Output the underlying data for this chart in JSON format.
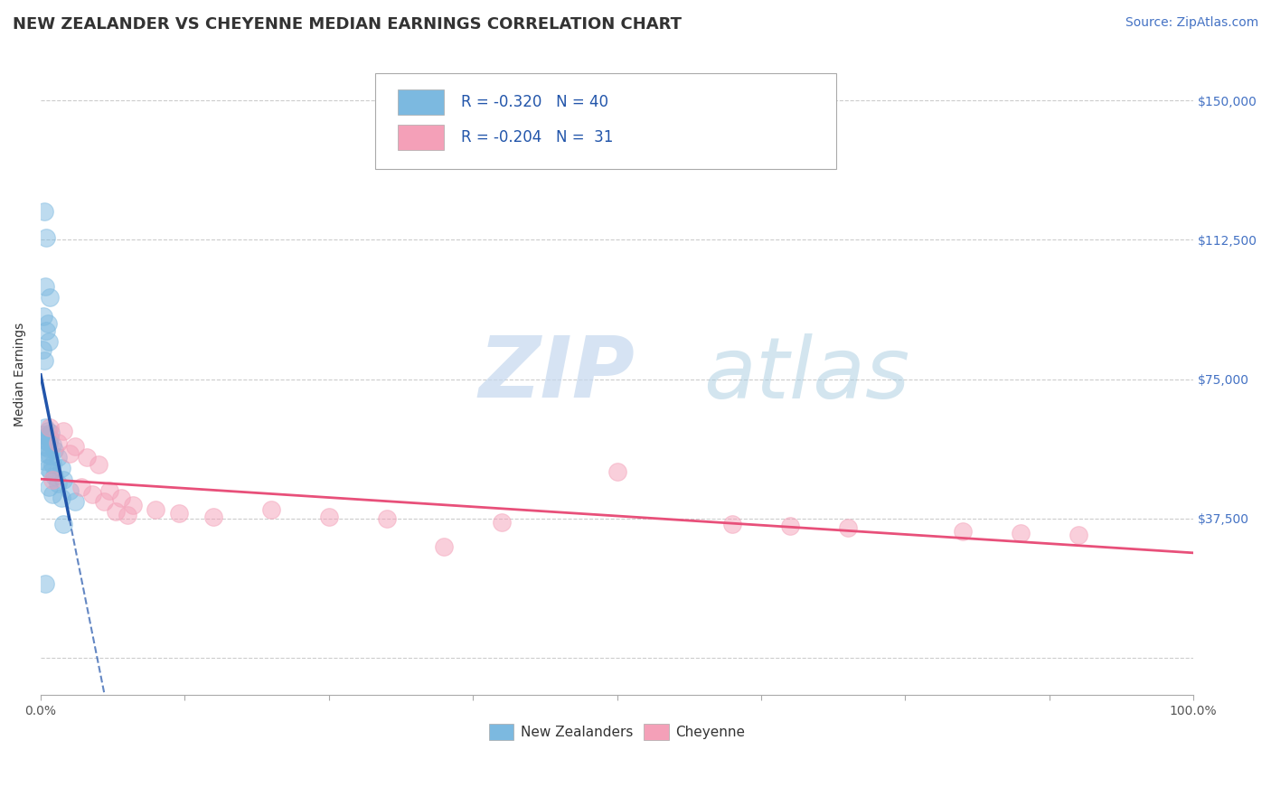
{
  "title": "NEW ZEALANDER VS CHEYENNE MEDIAN EARNINGS CORRELATION CHART",
  "source": "Source: ZipAtlas.com",
  "ylabel": "Median Earnings",
  "xlim": [
    0.0,
    100.0
  ],
  "ylim": [
    -10000,
    162500
  ],
  "yticks": [
    0,
    37500,
    75000,
    112500,
    150000
  ],
  "ytick_labels": [
    "",
    "$37,500",
    "$75,000",
    "$112,500",
    "$150,000"
  ],
  "xtick_positions": [
    0,
    12.5,
    25,
    37.5,
    50,
    62.5,
    75,
    87.5,
    100
  ],
  "xtick_labels_show": [
    "0.0%",
    "",
    "",
    "",
    "",
    "",
    "",
    "",
    "100.0%"
  ],
  "legend_R_blue": "R = -0.320",
  "legend_N_blue": "N = 40",
  "legend_R_pink": "R = -0.204",
  "legend_N_pink": "N =  31",
  "watermark_zip": "ZIP",
  "watermark_atlas": "atlas",
  "blue_color": "#7cb9e0",
  "pink_color": "#f4a0b8",
  "blue_line_color": "#2255aa",
  "pink_line_color": "#e8507a",
  "blue_scatter": [
    [
      0.3,
      120000
    ],
    [
      0.5,
      113000
    ],
    [
      0.4,
      100000
    ],
    [
      0.8,
      97000
    ],
    [
      0.2,
      92000
    ],
    [
      0.6,
      90000
    ],
    [
      0.5,
      88000
    ],
    [
      0.7,
      85000
    ],
    [
      0.15,
      83000
    ],
    [
      0.3,
      80000
    ],
    [
      0.4,
      62000
    ],
    [
      0.6,
      61000
    ],
    [
      0.9,
      60500
    ],
    [
      0.2,
      60000
    ],
    [
      0.5,
      59500
    ],
    [
      0.8,
      59000
    ],
    [
      0.3,
      58500
    ],
    [
      0.7,
      58000
    ],
    [
      1.0,
      57500
    ],
    [
      0.4,
      57000
    ],
    [
      0.6,
      56500
    ],
    [
      1.2,
      56000
    ],
    [
      0.5,
      55000
    ],
    [
      0.8,
      54500
    ],
    [
      1.5,
      54000
    ],
    [
      0.3,
      53000
    ],
    [
      1.0,
      52000
    ],
    [
      0.6,
      51000
    ],
    [
      1.8,
      51000
    ],
    [
      0.9,
      50000
    ],
    [
      1.2,
      49000
    ],
    [
      2.0,
      48000
    ],
    [
      1.5,
      47000
    ],
    [
      0.7,
      46000
    ],
    [
      2.5,
      45000
    ],
    [
      1.0,
      44000
    ],
    [
      1.8,
      43000
    ],
    [
      3.0,
      42000
    ],
    [
      2.0,
      36000
    ],
    [
      0.4,
      20000
    ]
  ],
  "pink_scatter": [
    [
      0.8,
      62000
    ],
    [
      2.0,
      61000
    ],
    [
      1.5,
      58000
    ],
    [
      3.0,
      57000
    ],
    [
      2.5,
      55000
    ],
    [
      4.0,
      54000
    ],
    [
      5.0,
      52000
    ],
    [
      1.0,
      48000
    ],
    [
      3.5,
      46000
    ],
    [
      6.0,
      45000
    ],
    [
      4.5,
      44000
    ],
    [
      7.0,
      43000
    ],
    [
      5.5,
      42000
    ],
    [
      8.0,
      41000
    ],
    [
      10.0,
      40000
    ],
    [
      6.5,
      39500
    ],
    [
      12.0,
      39000
    ],
    [
      7.5,
      38500
    ],
    [
      15.0,
      38000
    ],
    [
      20.0,
      40000
    ],
    [
      25.0,
      38000
    ],
    [
      30.0,
      37500
    ],
    [
      40.0,
      36500
    ],
    [
      60.0,
      36000
    ],
    [
      65.0,
      35500
    ],
    [
      70.0,
      35000
    ],
    [
      80.0,
      34000
    ],
    [
      85.0,
      33500
    ],
    [
      90.0,
      33000
    ],
    [
      50.0,
      50000
    ],
    [
      35.0,
      30000
    ]
  ],
  "title_fontsize": 13,
  "axis_label_fontsize": 10,
  "tick_fontsize": 10,
  "legend_fontsize": 12,
  "source_fontsize": 10,
  "background_color": "#ffffff",
  "grid_color": "#cccccc",
  "grid_style": "--"
}
